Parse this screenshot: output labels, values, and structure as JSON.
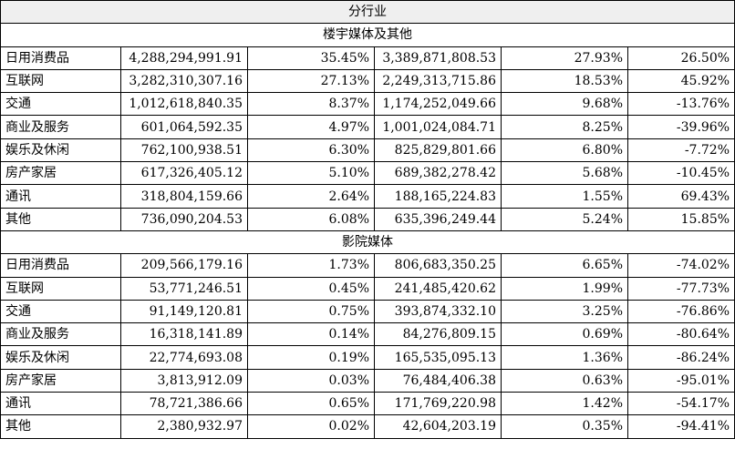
{
  "header": "分行业",
  "sections": [
    {
      "title": "楼宇媒体及其他",
      "rows": [
        [
          "日用消费品",
          "4,288,294,991.91",
          "35.45%",
          "3,389,871,808.53",
          "27.93%",
          "26.50%"
        ],
        [
          "互联网",
          "3,282,310,307.16",
          "27.13%",
          "2,249,313,715.86",
          "18.53%",
          "45.92%"
        ],
        [
          "交通",
          "1,012,618,840.35",
          "8.37%",
          "1,174,252,049.66",
          "9.68%",
          "-13.76%"
        ],
        [
          "商业及服务",
          "601,064,592.35",
          "4.97%",
          "1,001,024,084.71",
          "8.25%",
          "-39.96%"
        ],
        [
          "娱乐及休闲",
          "762,100,938.51",
          "6.30%",
          "825,829,801.66",
          "6.80%",
          "-7.72%"
        ],
        [
          "房产家居",
          "617,326,405.12",
          "5.10%",
          "689,382,278.42",
          "5.68%",
          "-10.45%"
        ],
        [
          "通讯",
          "318,804,159.66",
          "2.64%",
          "188,165,224.83",
          "1.55%",
          "69.43%"
        ],
        [
          "其他",
          "736,090,204.53",
          "6.08%",
          "635,396,249.44",
          "5.24%",
          "15.85%"
        ]
      ]
    },
    {
      "title": "影院媒体",
      "rows": [
        [
          "日用消费品",
          "209,566,179.16",
          "1.73%",
          "806,683,350.25",
          "6.65%",
          "-74.02%"
        ],
        [
          "互联网",
          "53,771,246.51",
          "0.45%",
          "241,485,420.62",
          "1.99%",
          "-77.73%"
        ],
        [
          "交通",
          "91,149,120.81",
          "0.75%",
          "393,874,332.10",
          "3.25%",
          "-76.86%"
        ],
        [
          "商业及服务",
          "16,318,141.89",
          "0.14%",
          "84,276,809.15",
          "0.69%",
          "-80.64%"
        ],
        [
          "娱乐及休闲",
          "22,774,693.08",
          "0.19%",
          "165,535,095.13",
          "1.36%",
          "-86.24%"
        ],
        [
          "房产家居",
          "3,813,912.09",
          "0.03%",
          "76,484,406.38",
          "0.63%",
          "-95.01%"
        ],
        [
          "通讯",
          "78,721,386.66",
          "0.65%",
          "171,769,220.98",
          "1.42%",
          "-54.17%"
        ],
        [
          "其他",
          "2,380,932.97",
          "0.02%",
          "42,604,203.19",
          "0.35%",
          "-94.41%"
        ]
      ]
    }
  ]
}
